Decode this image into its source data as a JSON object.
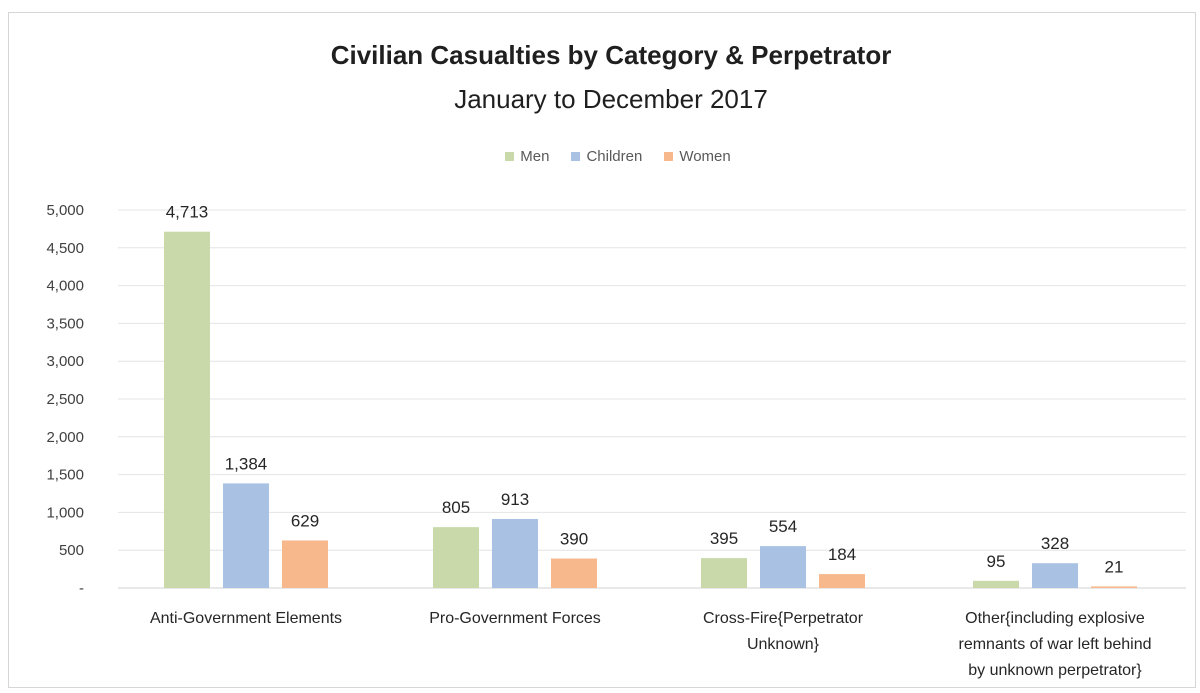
{
  "chart_data": {
    "type": "bar",
    "title": "Civilian Casualties by Category & Perpetrator",
    "subtitle": "January to December  2017",
    "categories": [
      [
        "Anti-Government Elements"
      ],
      [
        "Pro-Government Forces"
      ],
      [
        "Cross-Fire{Perpetrator",
        "Unknown}"
      ],
      [
        "Other{including explosive",
        "remnants of war left behind",
        "by unknown perpetrator}"
      ]
    ],
    "series": [
      {
        "name": "Men",
        "color": "#c9d9a9",
        "values": [
          4713,
          805,
          395,
          95
        ],
        "labels": [
          "4,713",
          "805",
          "395",
          "95"
        ]
      },
      {
        "name": "Children",
        "color": "#a9c1e3",
        "values": [
          1384,
          913,
          554,
          328
        ],
        "labels": [
          "1,384",
          "913",
          "554",
          "328"
        ]
      },
      {
        "name": "Women",
        "color": "#f7b98c",
        "values": [
          629,
          390,
          184,
          21
        ],
        "labels": [
          "629",
          "390",
          "184",
          "21"
        ]
      }
    ],
    "yticks": [
      0,
      500,
      1000,
      1500,
      2000,
      2500,
      3000,
      3500,
      4000,
      4500,
      5000
    ],
    "ytick_labels": [
      "-",
      "500",
      "1,000",
      "1,500",
      "2,000",
      "2,500",
      "3,000",
      "3,500",
      "4,000",
      "4,500",
      "5,000"
    ],
    "ylim": [
      0,
      5000
    ],
    "grid": true,
    "legend_position": "top-center"
  }
}
